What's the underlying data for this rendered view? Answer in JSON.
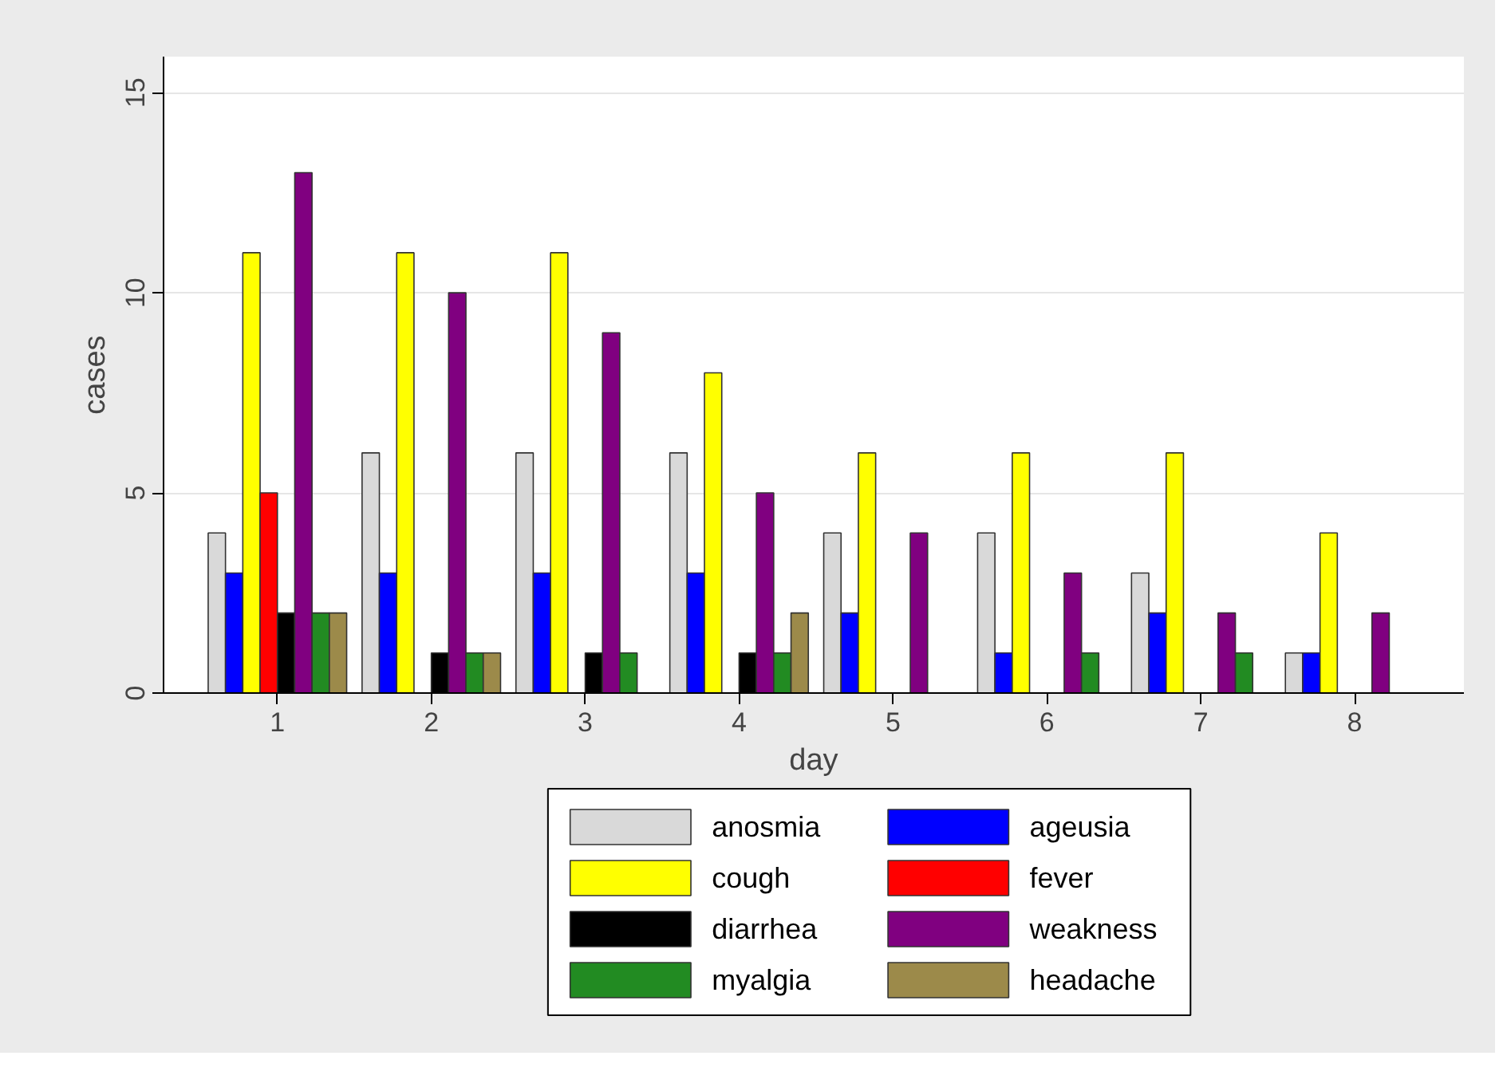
{
  "chart_data": {
    "type": "bar",
    "xlabel": "day",
    "ylabel": "cases",
    "categories": [
      "1",
      "2",
      "3",
      "4",
      "5",
      "6",
      "7",
      "8"
    ],
    "ylim": [
      0,
      15.9
    ],
    "yticks": [
      0,
      5,
      10,
      15
    ],
    "grid": "y",
    "legend": "bottom",
    "series": [
      {
        "name": "anosmia",
        "color": "#d9d9d9",
        "values": [
          4,
          6,
          6,
          6,
          4,
          4,
          3,
          1
        ]
      },
      {
        "name": "ageusia",
        "color": "#0000ff",
        "values": [
          3,
          3,
          3,
          3,
          2,
          1,
          2,
          1
        ]
      },
      {
        "name": "cough",
        "color": "#ffff00",
        "values": [
          11,
          11,
          11,
          8,
          6,
          6,
          6,
          4
        ]
      },
      {
        "name": "fever",
        "color": "#ff0000",
        "values": [
          5,
          0,
          0,
          0,
          0,
          0,
          0,
          0
        ]
      },
      {
        "name": "diarrhea",
        "color": "#000000",
        "values": [
          2,
          1,
          1,
          1,
          0,
          0,
          0,
          0
        ]
      },
      {
        "name": "weakness",
        "color": "#800080",
        "values": [
          13,
          10,
          9,
          5,
          4,
          3,
          2,
          2
        ]
      },
      {
        "name": "myalgia",
        "color": "#228b22",
        "values": [
          2,
          1,
          1,
          1,
          0,
          1,
          1,
          0
        ]
      },
      {
        "name": "headache",
        "color": "#9c8a4a",
        "values": [
          2,
          1,
          0,
          2,
          0,
          0,
          0,
          0
        ]
      }
    ]
  }
}
